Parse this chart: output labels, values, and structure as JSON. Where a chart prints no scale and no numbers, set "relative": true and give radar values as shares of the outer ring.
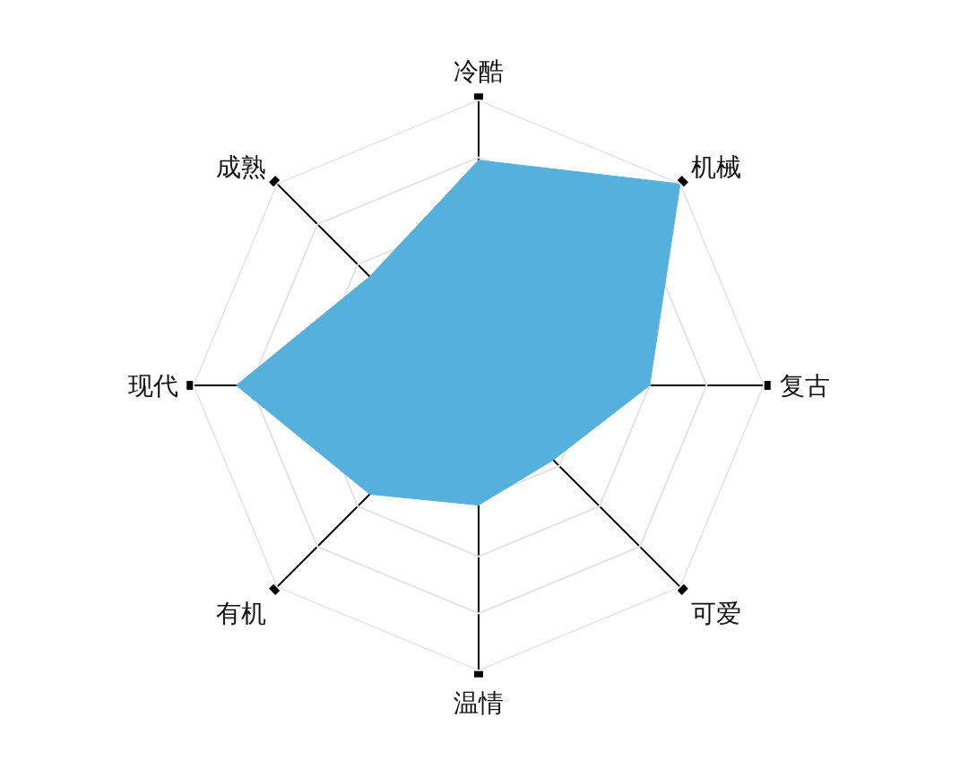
{
  "chart_data": {
    "type": "radar",
    "relative": true,
    "categories": [
      "冷酷",
      "机械",
      "复古",
      "可爱",
      "温情",
      "有机",
      "现代",
      "成熟"
    ],
    "series": [
      {
        "color": "#55b0dc",
        "values": [
          0.79,
          1.0,
          0.6,
          0.37,
          0.42,
          0.54,
          0.85,
          0.54
        ]
      }
    ],
    "grid": true,
    "marker": "none"
  }
}
